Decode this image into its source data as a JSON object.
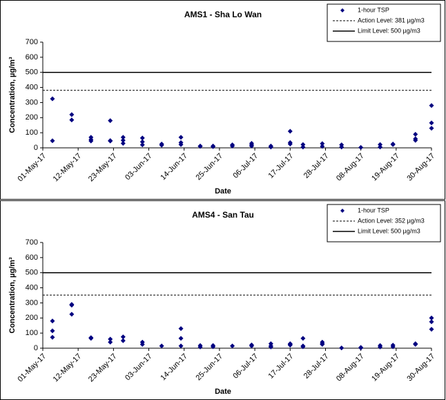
{
  "chart_data": [
    {
      "type": "scatter",
      "title": "AMS1 - Sha Lo Wan",
      "x_label": "Date",
      "y_label": "Concentration, µg/m³",
      "xlim": [
        "2017-05-01",
        "2017-08-30"
      ],
      "xticks": [
        {
          "value": "2017-05-01",
          "label": "01-May-17"
        },
        {
          "value": "2017-05-12",
          "label": "12-May-17"
        },
        {
          "value": "2017-05-23",
          "label": "23-May-17"
        },
        {
          "value": "2017-06-03",
          "label": "03-Jun-17"
        },
        {
          "value": "2017-06-14",
          "label": "14-Jun-17"
        },
        {
          "value": "2017-06-25",
          "label": "25-Jun-17"
        },
        {
          "value": "2017-07-06",
          "label": "06-Jul-17"
        },
        {
          "value": "2017-07-17",
          "label": "17-Jul-17"
        },
        {
          "value": "2017-07-28",
          "label": "28-Jul-17"
        },
        {
          "value": "2017-08-08",
          "label": "08-Aug-17"
        },
        {
          "value": "2017-08-19",
          "label": "19-Aug-17"
        },
        {
          "value": "2017-08-30",
          "label": "30-Aug-17"
        }
      ],
      "ylim": [
        0,
        700
      ],
      "yticks": [
        0,
        100,
        200,
        300,
        400,
        500,
        600,
        700
      ],
      "legend": "upper right",
      "series": [
        {
          "name": "1-hour TSP",
          "color": "#000080",
          "x": [
            "2017-05-04",
            "2017-05-04",
            "2017-05-10",
            "2017-05-10",
            "2017-05-16",
            "2017-05-16",
            "2017-05-16",
            "2017-05-22",
            "2017-05-22",
            "2017-05-22",
            "2017-05-26",
            "2017-05-26",
            "2017-05-26",
            "2017-06-01",
            "2017-06-01",
            "2017-06-01",
            "2017-06-07",
            "2017-06-07",
            "2017-06-13",
            "2017-06-13",
            "2017-06-13",
            "2017-06-19",
            "2017-06-19",
            "2017-06-23",
            "2017-06-23",
            "2017-06-29",
            "2017-06-29",
            "2017-07-05",
            "2017-07-05",
            "2017-07-05",
            "2017-07-11",
            "2017-07-11",
            "2017-07-17",
            "2017-07-17",
            "2017-07-17",
            "2017-07-21",
            "2017-07-21",
            "2017-07-27",
            "2017-07-27",
            "2017-08-02",
            "2017-08-02",
            "2017-08-08",
            "2017-08-14",
            "2017-08-14",
            "2017-08-18",
            "2017-08-18",
            "2017-08-25",
            "2017-08-25",
            "2017-08-25",
            "2017-08-30",
            "2017-08-30",
            "2017-08-30"
          ],
          "values": [
            325,
            47,
            220,
            185,
            70,
            55,
            45,
            180,
            48,
            45,
            70,
            50,
            30,
            65,
            40,
            20,
            25,
            18,
            70,
            35,
            22,
            12,
            10,
            12,
            8,
            20,
            12,
            30,
            20,
            12,
            12,
            5,
            110,
            35,
            25,
            22,
            5,
            28,
            10,
            20,
            5,
            3,
            22,
            5,
            25,
            22,
            90,
            60,
            50,
            280,
            165,
            130
          ]
        }
      ],
      "lines": [
        {
          "name": "Action Level: 381 µg/m3",
          "value": 381,
          "style": "dashed"
        },
        {
          "name": "Limit Level: 500 µg/m3",
          "value": 500,
          "style": "solid"
        }
      ]
    },
    {
      "type": "scatter",
      "title": "AMS4 - San Tau",
      "x_label": "Date",
      "y_label": "Concentration, µg/m³",
      "xlim": [
        "2017-05-01",
        "2017-08-30"
      ],
      "xticks": [
        {
          "value": "2017-05-01",
          "label": "01-May-17"
        },
        {
          "value": "2017-05-12",
          "label": "12-May-17"
        },
        {
          "value": "2017-05-23",
          "label": "23-May-17"
        },
        {
          "value": "2017-06-03",
          "label": "03-Jun-17"
        },
        {
          "value": "2017-06-14",
          "label": "14-Jun-17"
        },
        {
          "value": "2017-06-25",
          "label": "25-Jun-17"
        },
        {
          "value": "2017-07-06",
          "label": "06-Jul-17"
        },
        {
          "value": "2017-07-17",
          "label": "17-Jul-17"
        },
        {
          "value": "2017-07-28",
          "label": "28-Jul-17"
        },
        {
          "value": "2017-08-08",
          "label": "08-Aug-17"
        },
        {
          "value": "2017-08-19",
          "label": "19-Aug-17"
        },
        {
          "value": "2017-08-30",
          "label": "30-Aug-17"
        }
      ],
      "ylim": [
        0,
        700
      ],
      "yticks": [
        0,
        100,
        200,
        300,
        400,
        500,
        600,
        700
      ],
      "legend": "upper right",
      "series": [
        {
          "name": "1-hour TSP",
          "color": "#000080",
          "x": [
            "2017-05-04",
            "2017-05-04",
            "2017-05-04",
            "2017-05-10",
            "2017-05-10",
            "2017-05-10",
            "2017-05-16",
            "2017-05-16",
            "2017-05-22",
            "2017-05-22",
            "2017-05-26",
            "2017-05-26",
            "2017-06-01",
            "2017-06-01",
            "2017-06-07",
            "2017-06-13",
            "2017-06-13",
            "2017-06-13",
            "2017-06-19",
            "2017-06-19",
            "2017-06-23",
            "2017-06-23",
            "2017-06-29",
            "2017-07-05",
            "2017-07-05",
            "2017-07-11",
            "2017-07-11",
            "2017-07-11",
            "2017-07-17",
            "2017-07-17",
            "2017-07-17",
            "2017-07-21",
            "2017-07-21",
            "2017-07-21",
            "2017-07-27",
            "2017-07-27",
            "2017-07-27",
            "2017-08-02",
            "2017-08-08",
            "2017-08-08",
            "2017-08-14",
            "2017-08-14",
            "2017-08-18",
            "2017-08-18",
            "2017-08-25",
            "2017-08-25",
            "2017-08-30",
            "2017-08-30",
            "2017-08-30"
          ],
          "values": [
            180,
            115,
            72,
            290,
            285,
            225,
            70,
            65,
            60,
            40,
            75,
            50,
            40,
            25,
            15,
            130,
            65,
            15,
            18,
            8,
            18,
            10,
            15,
            22,
            15,
            30,
            15,
            8,
            30,
            25,
            20,
            65,
            15,
            10,
            40,
            30,
            25,
            2,
            5,
            2,
            18,
            8,
            20,
            10,
            30,
            25,
            200,
            175,
            125
          ]
        }
      ],
      "lines": [
        {
          "name": "Action Level: 352 µg/m3",
          "value": 352,
          "style": "dashed"
        },
        {
          "name": "Limit Level: 500 µg/m3",
          "value": 500,
          "style": "solid"
        }
      ]
    }
  ]
}
